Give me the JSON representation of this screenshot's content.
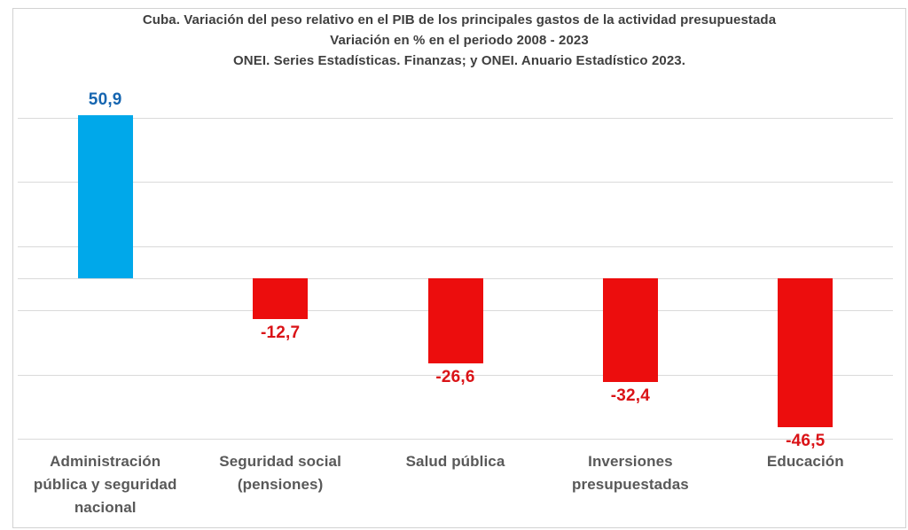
{
  "chart_data": {
    "type": "bar",
    "title": "Cuba. Variación del peso relativo en el PIB de los principales gastos de la actividad presupuestada",
    "subtitle": "Variación en % en el periodo 2008 - 2023",
    "source": "ONEI. Series Estadísticas. Finanzas; y ONEI. Anuario Estadístico 2023.",
    "categories": [
      "Administración pública y seguridad nacional",
      "Seguridad social (pensiones)",
      "Salud pública",
      "Inversiones presupuestadas",
      "Educación"
    ],
    "values": [
      50.9,
      -12.7,
      -26.6,
      -32.4,
      -46.5
    ],
    "value_labels": [
      "50,9",
      "-12,7",
      "-26,6",
      "-32,4",
      "-46,5"
    ],
    "xlabel": "",
    "ylabel": "",
    "ylim": [
      -55,
      58
    ],
    "gridline_values": [
      50,
      30,
      10,
      0,
      -10,
      -30,
      -50
    ],
    "grid": true,
    "legend": false,
    "colors": {
      "positive_bar": "#00a8ea",
      "negative_bar": "#ec0d0d",
      "positive_label": "#1565b0",
      "negative_label": "#da1317",
      "title_text": "#3f3f3f",
      "category_text": "#595959",
      "gridline": "#dadada"
    }
  }
}
